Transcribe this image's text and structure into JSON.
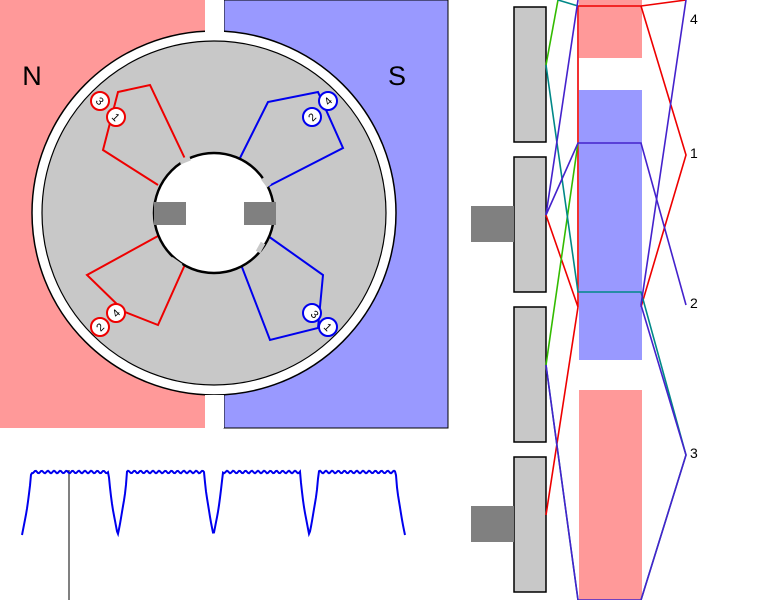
{
  "motor": {
    "pole_north": "N",
    "pole_south": "S",
    "colors": {
      "north": "#ff9999",
      "south": "#9999ff",
      "rotor": "#c8c8c8",
      "brush": "#808080"
    }
  },
  "coil_markers": [
    {
      "id": "nw-outer",
      "label": "3",
      "color": "#ee0000"
    },
    {
      "id": "nw-inner",
      "label": "1",
      "color": "#ee0000"
    },
    {
      "id": "ne-outer",
      "label": "4",
      "color": "#0000ee"
    },
    {
      "id": "ne-inner",
      "label": "2",
      "color": "#0000ee"
    },
    {
      "id": "sw-outer",
      "label": "2",
      "color": "#ee0000"
    },
    {
      "id": "sw-inner",
      "label": "4",
      "color": "#ee0000"
    },
    {
      "id": "se-outer",
      "label": "1",
      "color": "#0000ee"
    },
    {
      "id": "se-inner",
      "label": "3",
      "color": "#0000ee"
    }
  ],
  "winding_labels": [
    "4",
    "1",
    "2",
    "3"
  ],
  "wire_colors": [
    "#ee0000",
    "#33bb00",
    "#008888",
    "#4422cc"
  ],
  "waveform": {
    "color": "#0000ee",
    "cycles": 4
  }
}
